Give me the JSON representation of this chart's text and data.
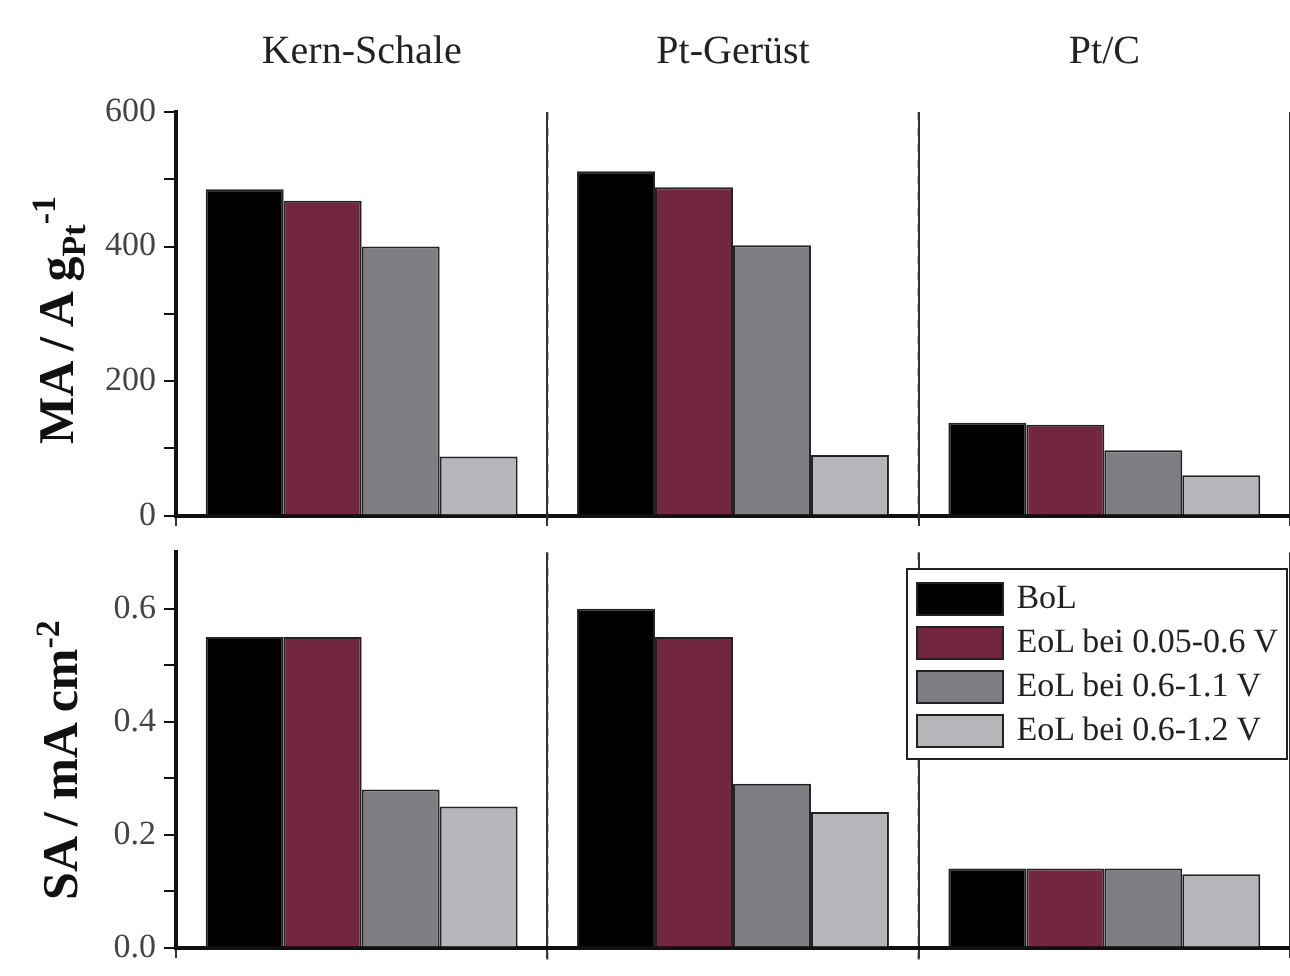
{
  "chart_data": [
    {
      "type": "bar",
      "ylabel": "MA / A g$_{Pt}$$^{-1}$",
      "categories": [
        "Kern-Schale",
        "Pt-Gerüst",
        "Pt/C"
      ],
      "series": [
        {
          "color": "#000000",
          "values": [
            485,
            512,
            138
          ]
        },
        {
          "color": "#722640",
          "values": [
            468,
            488,
            135
          ]
        },
        {
          "color": "#7d7e83",
          "values": [
            400,
            402,
            97
          ]
        },
        {
          "color": "#b5b6ba",
          "values": [
            88,
            90,
            60
          ]
        }
      ],
      "ylim": [
        0,
        600
      ],
      "yticks": [
        0,
        {
          "value": 100,
          "label": null
        },
        200,
        {
          "value": 300,
          "label": null
        },
        400,
        {
          "value": 500,
          "label": null
        },
        600
      ],
      "grid": "x",
      "line_style": "dashed",
      "legend": false
    },
    {
      "type": "bar",
      "ylabel": "SA / mA cm$^{-2}$",
      "categories": [
        null,
        null,
        null
      ],
      "series": [
        {
          "name": "BoL",
          "color": "#000000",
          "values": [
            0.55,
            0.6,
            0.14
          ]
        },
        {
          "name": "EoL bei 0.05-0.6 V",
          "color": "#722640",
          "values": [
            0.55,
            0.55,
            0.14
          ]
        },
        {
          "name": "EoL bei 0.6-1.1 V",
          "color": "#7d7e83",
          "values": [
            0.28,
            0.29,
            0.14
          ]
        },
        {
          "name": "EoL bei 0.6-1.2 V",
          "color": "#b5b6ba",
          "values": [
            0.25,
            0.24,
            0.13
          ]
        }
      ],
      "ylim": [
        0,
        0.7
      ],
      "yticks": [
        {
          "value": 0,
          "label": "0.0"
        },
        {
          "value": 0.1,
          "label": null
        },
        0.2,
        {
          "value": 0.3,
          "label": null
        },
        0.4,
        {
          "value": 0.5,
          "label": null
        },
        0.6
      ],
      "grid": "x",
      "line_style": "dashed",
      "legend": "top right",
      "tick_labels": "y"
    }
  ]
}
